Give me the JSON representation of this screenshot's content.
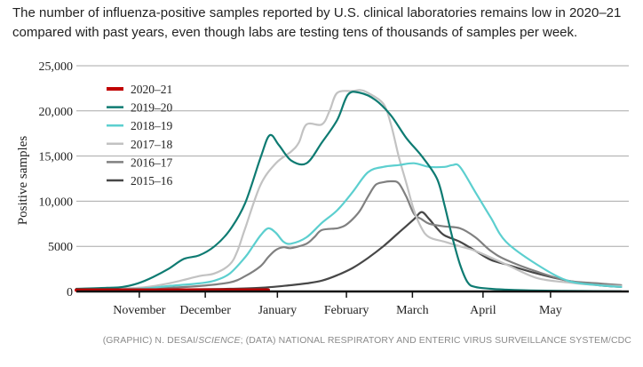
{
  "caption": "The number of influenza-positive samples reported by U.S. clinical laboratories remains low in 2020–21 compared with past years, even though labs are testing tens of thousands of samples per week.",
  "credit": {
    "prefix": "(GRAPHIC) N. DESAI/",
    "italic": "SCIENCE",
    "suffix": "; (DATA) NATIONAL RESPIRATORY AND ENTERIC VIRUS SURVEILLANCE SYSTEM/CDC"
  },
  "chart_data": {
    "type": "line",
    "title": "",
    "xlabel": "",
    "ylabel": "Positive samples",
    "ylim": [
      0,
      25000
    ],
    "xlim": [
      0,
      36
    ],
    "y_ticks": [
      0,
      5000,
      10000,
      15000,
      20000,
      25000
    ],
    "y_tick_labels": [
      "0",
      "5000",
      "10,000",
      "15,000",
      "20,000",
      "25,000"
    ],
    "x_ticks": [
      {
        "x": 4.1,
        "label": "November"
      },
      {
        "x": 8.4,
        "label": "December"
      },
      {
        "x": 13.1,
        "label": "January"
      },
      {
        "x": 17.6,
        "label": "February"
      },
      {
        "x": 21.9,
        "label": "March"
      },
      {
        "x": 26.5,
        "label": "April"
      },
      {
        "x": 30.9,
        "label": "May"
      }
    ],
    "grid": true,
    "legend_position": "top-left",
    "series": [
      {
        "name": "2020–21",
        "color": "#c00000",
        "x": [
          0,
          12.5
        ],
        "values": [
          150,
          150
        ]
      },
      {
        "name": "2019–20",
        "color": "#0e7b72",
        "x": [
          0,
          2,
          3,
          4,
          5,
          6,
          7,
          8,
          9,
          10,
          11,
          12,
          12.6,
          13.2,
          14,
          15,
          16,
          17,
          17.7,
          18.5,
          19.5,
          20.5,
          21.5,
          22.5,
          23.5,
          24,
          24.5,
          25,
          25.5,
          26,
          27,
          28,
          30,
          33,
          35.5
        ],
        "values": [
          300,
          400,
          500,
          900,
          1600,
          2500,
          3600,
          4000,
          5000,
          6800,
          9800,
          14800,
          17300,
          16200,
          14500,
          14200,
          16500,
          19000,
          21800,
          22000,
          21200,
          19500,
          17000,
          15000,
          12500,
          9500,
          6000,
          3000,
          1000,
          500,
          300,
          200,
          100,
          50,
          20
        ]
      },
      {
        "name": "2018–19",
        "color": "#5ccfcf",
        "x": [
          0,
          4,
          6,
          8,
          9,
          10,
          11,
          11.5,
          12,
          12.5,
          13,
          13.5,
          14,
          15,
          16,
          17,
          18,
          19,
          20,
          21,
          22,
          23,
          24,
          24.5,
          25,
          26,
          27,
          28,
          30,
          32,
          34,
          35.5
        ],
        "values": [
          200,
          300,
          600,
          900,
          1200,
          2000,
          3800,
          5000,
          6200,
          7000,
          6500,
          5500,
          5300,
          6000,
          7600,
          9000,
          11000,
          13200,
          13800,
          14000,
          14200,
          13800,
          13800,
          14000,
          13800,
          11000,
          8200,
          5500,
          3000,
          1200,
          700,
          500
        ]
      },
      {
        "name": "2017–18",
        "color": "#c2c2c2",
        "x": [
          0,
          4,
          6,
          8,
          9,
          10,
          10.5,
          11,
          12,
          13,
          14,
          14.5,
          15,
          16,
          16.5,
          17,
          18,
          18.5,
          19,
          20,
          20.5,
          21,
          21.5,
          22,
          22.5,
          23,
          24,
          25,
          26,
          28,
          30,
          32,
          34,
          35.5
        ],
        "values": [
          200,
          400,
          900,
          1700,
          2000,
          3000,
          4500,
          7000,
          11800,
          14200,
          15500,
          16500,
          18500,
          18500,
          20000,
          22000,
          22200,
          22300,
          22000,
          20800,
          18500,
          15000,
          12000,
          9000,
          7000,
          6000,
          5500,
          5000,
          4500,
          3000,
          1500,
          1000,
          700,
          600
        ]
      },
      {
        "name": "2016–17",
        "color": "#808080",
        "x": [
          0,
          4,
          6,
          8,
          10,
          11,
          12,
          12.5,
          13,
          13.5,
          14,
          15,
          15.5,
          16,
          17,
          17.5,
          18,
          18.5,
          19,
          19.5,
          20,
          20.5,
          21,
          21.5,
          22,
          22.5,
          23,
          24,
          25,
          26,
          27,
          28,
          30,
          32,
          34,
          35.5
        ],
        "values": [
          200,
          300,
          400,
          600,
          1000,
          1700,
          2800,
          3800,
          4600,
          4900,
          4800,
          5300,
          6000,
          6800,
          7000,
          7300,
          8000,
          9000,
          10500,
          11800,
          12100,
          12200,
          12000,
          10500,
          8600,
          8000,
          7500,
          7200,
          7000,
          6000,
          4500,
          3500,
          2200,
          1200,
          900,
          700
        ]
      },
      {
        "name": "2015–16",
        "color": "#474747",
        "x": [
          0,
          4,
          8,
          10,
          12,
          14,
          15,
          16,
          17,
          18,
          19,
          20,
          21,
          22,
          22.5,
          23,
          23.5,
          24,
          25,
          26,
          27,
          28,
          30,
          32,
          34,
          35.5
        ],
        "values": [
          150,
          200,
          250,
          300,
          400,
          700,
          900,
          1200,
          1800,
          2600,
          3700,
          5000,
          6500,
          8000,
          8800,
          8000,
          7000,
          6200,
          5500,
          4500,
          3500,
          3000,
          2000,
          1200,
          700,
          500
        ]
      }
    ]
  }
}
